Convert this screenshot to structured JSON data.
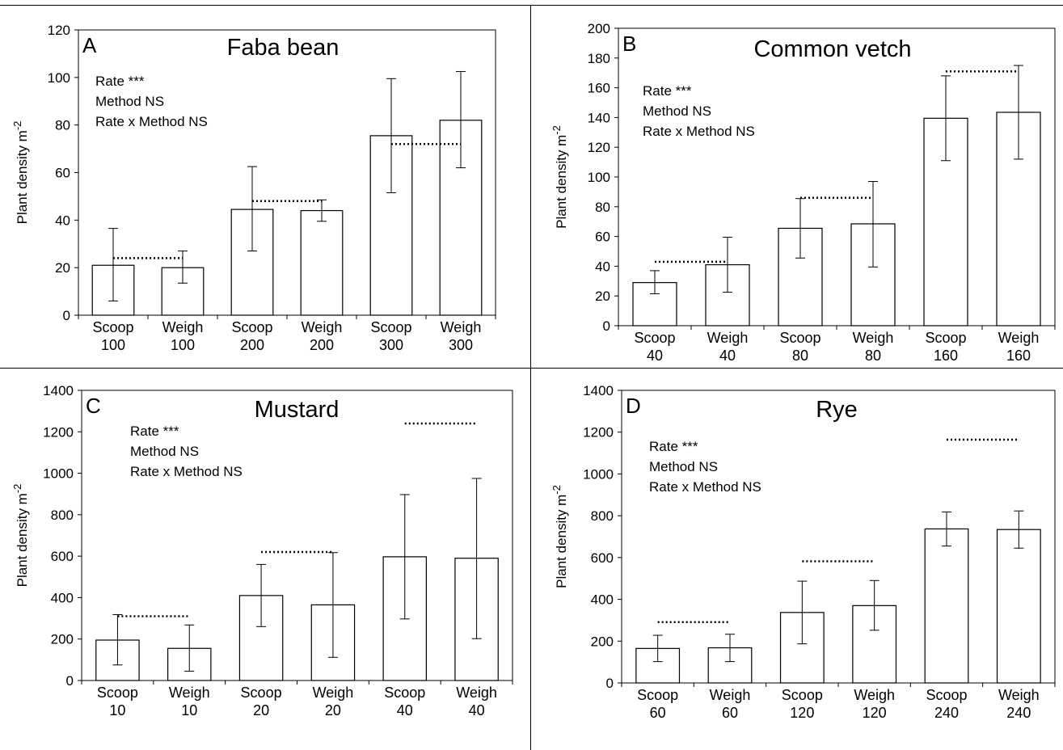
{
  "chart_data": [
    {
      "type": "bar",
      "panel_letter": "A",
      "title": "Faba bean",
      "ylabel": "Plant density m",
      "ylabel_superscript": "-2",
      "ylim": [
        0,
        120
      ],
      "yticks": [
        0,
        20,
        40,
        60,
        80,
        100,
        120
      ],
      "categories": [
        [
          "Scoop",
          "100"
        ],
        [
          "Weigh",
          "100"
        ],
        [
          "Scoop",
          "200"
        ],
        [
          "Weigh",
          "200"
        ],
        [
          "Scoop",
          "300"
        ],
        [
          "Weigh",
          "300"
        ]
      ],
      "values": [
        21,
        20,
        44.5,
        44,
        75.5,
        82
      ],
      "error_low": [
        6,
        13.5,
        27,
        39.5,
        51.5,
        62
      ],
      "error_high": [
        36.5,
        27,
        62.5,
        48.5,
        99.5,
        102.5
      ],
      "target_lines": [
        {
          "from": 0,
          "to": 1,
          "value": 24
        },
        {
          "from": 2,
          "to": 3,
          "value": 48
        },
        {
          "from": 4,
          "to": 5,
          "value": 72
        }
      ],
      "stats": [
        "Rate ***",
        "Method NS",
        "Rate x Method NS"
      ]
    },
    {
      "type": "bar",
      "panel_letter": "B",
      "title": "Common vetch",
      "ylabel": "Plant density m",
      "ylabel_superscript": "-2",
      "ylim": [
        0,
        200
      ],
      "yticks": [
        0,
        20,
        40,
        60,
        80,
        100,
        120,
        140,
        160,
        180,
        200
      ],
      "categories": [
        [
          "Scoop",
          "40"
        ],
        [
          "Weigh",
          "40"
        ],
        [
          "Scoop",
          "80"
        ],
        [
          "Weigh",
          "80"
        ],
        [
          "Scoop",
          "160"
        ],
        [
          "Weigh",
          "160"
        ]
      ],
      "values": [
        29,
        41,
        65.5,
        68.5,
        139.5,
        143.5
      ],
      "error_low": [
        21.5,
        22.5,
        45.5,
        39.5,
        111,
        112
      ],
      "error_high": [
        37,
        59.5,
        85.5,
        97,
        168,
        175
      ],
      "target_lines": [
        {
          "from": 0,
          "to": 1,
          "value": 43
        },
        {
          "from": 2,
          "to": 3,
          "value": 86
        },
        {
          "from": 4,
          "to": 5,
          "value": 171
        }
      ],
      "stats": [
        "Rate ***",
        "Method NS",
        "Rate x Method NS"
      ]
    },
    {
      "type": "bar",
      "panel_letter": "C",
      "title": "Mustard",
      "ylabel": "Plant density m",
      "ylabel_superscript": "-2",
      "ylim": [
        0,
        1400
      ],
      "yticks": [
        0,
        200,
        400,
        600,
        800,
        1000,
        1200,
        1400
      ],
      "categories": [
        [
          "Scoop",
          "10"
        ],
        [
          "Weigh",
          "10"
        ],
        [
          "Scoop",
          "20"
        ],
        [
          "Weigh",
          "20"
        ],
        [
          "Scoop",
          "40"
        ],
        [
          "Weigh",
          "40"
        ]
      ],
      "values": [
        195,
        155,
        410,
        365,
        597,
        590
      ],
      "error_low": [
        75,
        45,
        260,
        112,
        297,
        202
      ],
      "error_high": [
        318,
        268,
        560,
        617,
        897,
        975
      ],
      "target_lines": [
        {
          "from": 0,
          "to": 1,
          "value": 310
        },
        {
          "from": 2,
          "to": 3,
          "value": 620
        },
        {
          "from": 4,
          "to": 5,
          "value": 1240
        }
      ],
      "stats": [
        "Rate ***",
        "Method NS",
        "Rate x Method NS"
      ]
    },
    {
      "type": "bar",
      "panel_letter": "D",
      "title": "Rye",
      "ylabel": "Plant density m",
      "ylabel_superscript": "-2",
      "ylim": [
        0,
        1400
      ],
      "yticks": [
        0,
        200,
        400,
        600,
        800,
        1000,
        1200,
        1400
      ],
      "categories": [
        [
          "Scoop",
          "60"
        ],
        [
          "Weigh",
          "60"
        ],
        [
          "Scoop",
          "120"
        ],
        [
          "Weigh",
          "120"
        ],
        [
          "Scoop",
          "240"
        ],
        [
          "Weigh",
          "240"
        ]
      ],
      "values": [
        165,
        168,
        337,
        370,
        737,
        734
      ],
      "error_low": [
        102,
        102,
        187,
        252,
        655,
        645
      ],
      "error_high": [
        228,
        233,
        487,
        490,
        818,
        823
      ],
      "target_lines": [
        {
          "from": 0,
          "to": 1,
          "value": 291
        },
        {
          "from": 2,
          "to": 3,
          "value": 582
        },
        {
          "from": 4,
          "to": 5,
          "value": 1164
        }
      ],
      "stats": [
        "Rate ***",
        "Method NS",
        "Rate x Method NS"
      ]
    }
  ]
}
